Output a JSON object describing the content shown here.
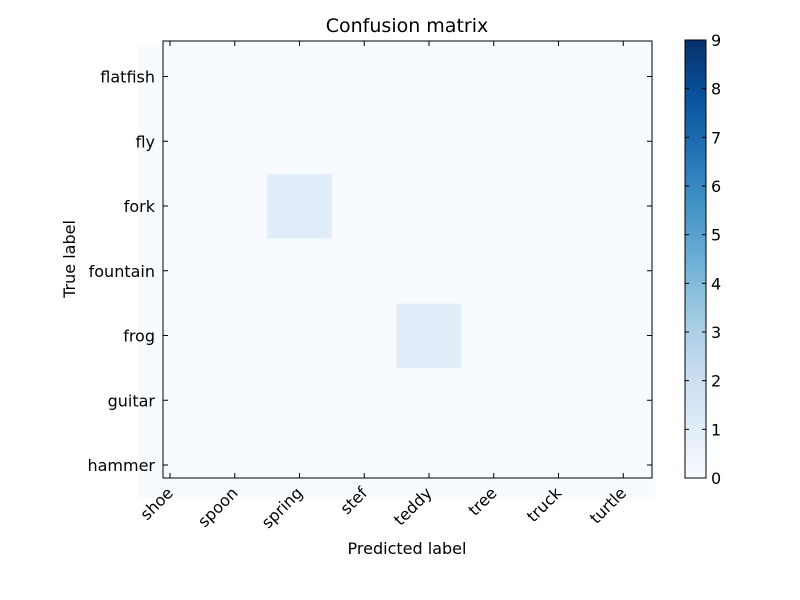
{
  "chart_data": {
    "type": "heatmap",
    "title": "Confusion matrix",
    "xlabel": "Predicted label",
    "ylabel": "True label",
    "x_categories": [
      "shoe",
      "spoon",
      "spring",
      "stef",
      "teddy",
      "tree",
      "truck",
      "turtle"
    ],
    "y_categories": [
      "flatfish",
      "fly",
      "fork",
      "fountain",
      "frog",
      "guitar",
      "hammer"
    ],
    "values": [
      [
        0,
        0,
        0,
        0,
        0,
        0,
        0,
        0
      ],
      [
        0,
        0,
        0,
        0,
        0,
        0,
        0,
        0
      ],
      [
        0,
        0,
        1,
        0,
        0,
        0,
        0,
        0
      ],
      [
        0,
        0,
        0,
        0,
        0,
        0,
        0,
        0
      ],
      [
        0,
        0,
        0,
        0,
        1,
        0,
        0,
        0
      ],
      [
        0,
        0,
        0,
        0,
        0,
        0,
        0,
        0
      ],
      [
        0,
        0,
        0,
        0,
        0,
        0,
        0,
        0
      ]
    ],
    "colorbar": {
      "colormap": "Blues",
      "range": [
        0,
        9
      ],
      "ticks": [
        0,
        1,
        2,
        3,
        4,
        5,
        6,
        7,
        8,
        9
      ],
      "colors": [
        "#f7fbff",
        "#deebf7",
        "#c6dbef",
        "#9ecae1",
        "#6baed6",
        "#4292c6",
        "#2171b5",
        "#08519c",
        "#08306b"
      ]
    },
    "grid": false
  }
}
